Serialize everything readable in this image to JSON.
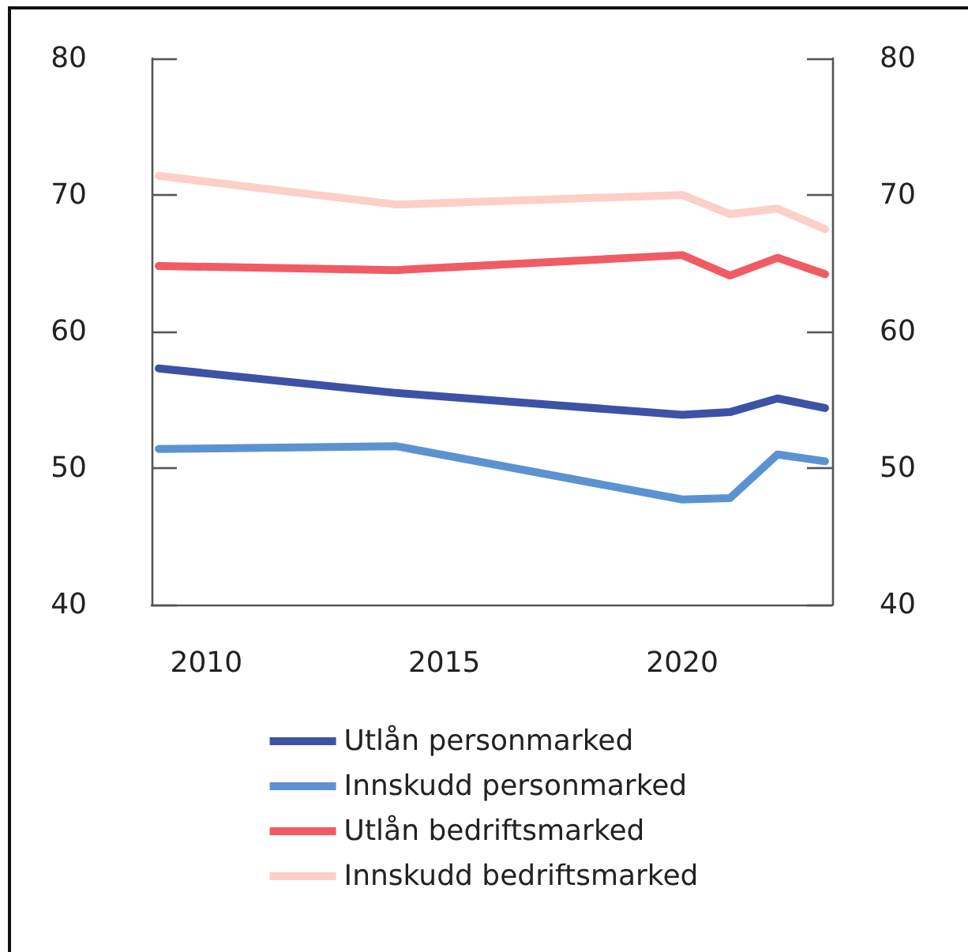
{
  "chart_data": {
    "type": "line",
    "x": [
      2009,
      2014,
      2020,
      2021,
      2022,
      2023
    ],
    "xlim": [
      2008.85,
      2023.15
    ],
    "xticks": [
      2010,
      2015,
      2020
    ],
    "ylim": [
      40,
      80
    ],
    "yticks": [
      40,
      50,
      60,
      70,
      80
    ],
    "y2lim": [
      40,
      80
    ],
    "y2ticks": [
      40,
      50,
      60,
      70,
      80
    ],
    "legend": "bottom",
    "series": [
      {
        "name": "Utlån personmarked",
        "color": "#3d52a6",
        "values": [
          57.3,
          55.5,
          53.9,
          54.1,
          55.1,
          54.4
        ]
      },
      {
        "name": "Innskudd personmarked",
        "color": "#5b93d2",
        "values": [
          51.4,
          51.6,
          47.7,
          47.8,
          51.0,
          50.5
        ]
      },
      {
        "name": "Utlån bedriftsmarked",
        "color": "#f15b64",
        "values": [
          64.8,
          64.5,
          65.6,
          64.1,
          65.4,
          64.2
        ]
      },
      {
        "name": "Innskudd bedriftsmarked",
        "color": "#fccfc8",
        "values": [
          71.4,
          69.3,
          70.0,
          68.6,
          69.0,
          67.5
        ]
      }
    ]
  }
}
